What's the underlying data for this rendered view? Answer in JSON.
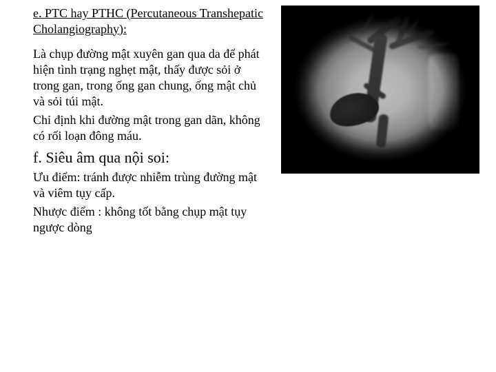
{
  "section_e": {
    "heading": "e. PTC hay PTHC (Percutaneous Transhepatic Cholangiography):",
    "para1": "Là chụp đường mật xuyên gan qua da để phát hiện tình trạng nghẹt mật, thấy được sỏi ở trong gan, trong ống gan chung, ống mật chủ và sỏi túi mật.",
    "para2": "Chỉ định khi đường mật trong gan dãn, không có rối loạn đông máu."
  },
  "section_f": {
    "heading": "f. Siêu âm qua nội soi:",
    "para1": "Ưu điểm:  tránh được nhiễm trùng đường mật và viêm tụy cấp.",
    "para2": "Nhược điểm : không tốt bằng chụp mật tụy ngược dòng"
  },
  "image": {
    "alt": "cholangiogram-radiograph",
    "background": "#000000",
    "field_gray": "#b0b0b0",
    "duct_gray": "#333333"
  },
  "colors": {
    "text": "#000000",
    "page_bg": "#ffffff"
  },
  "typography": {
    "body_family": "Times New Roman",
    "body_size_pt": 13,
    "heading_f_size_pt": 16
  }
}
